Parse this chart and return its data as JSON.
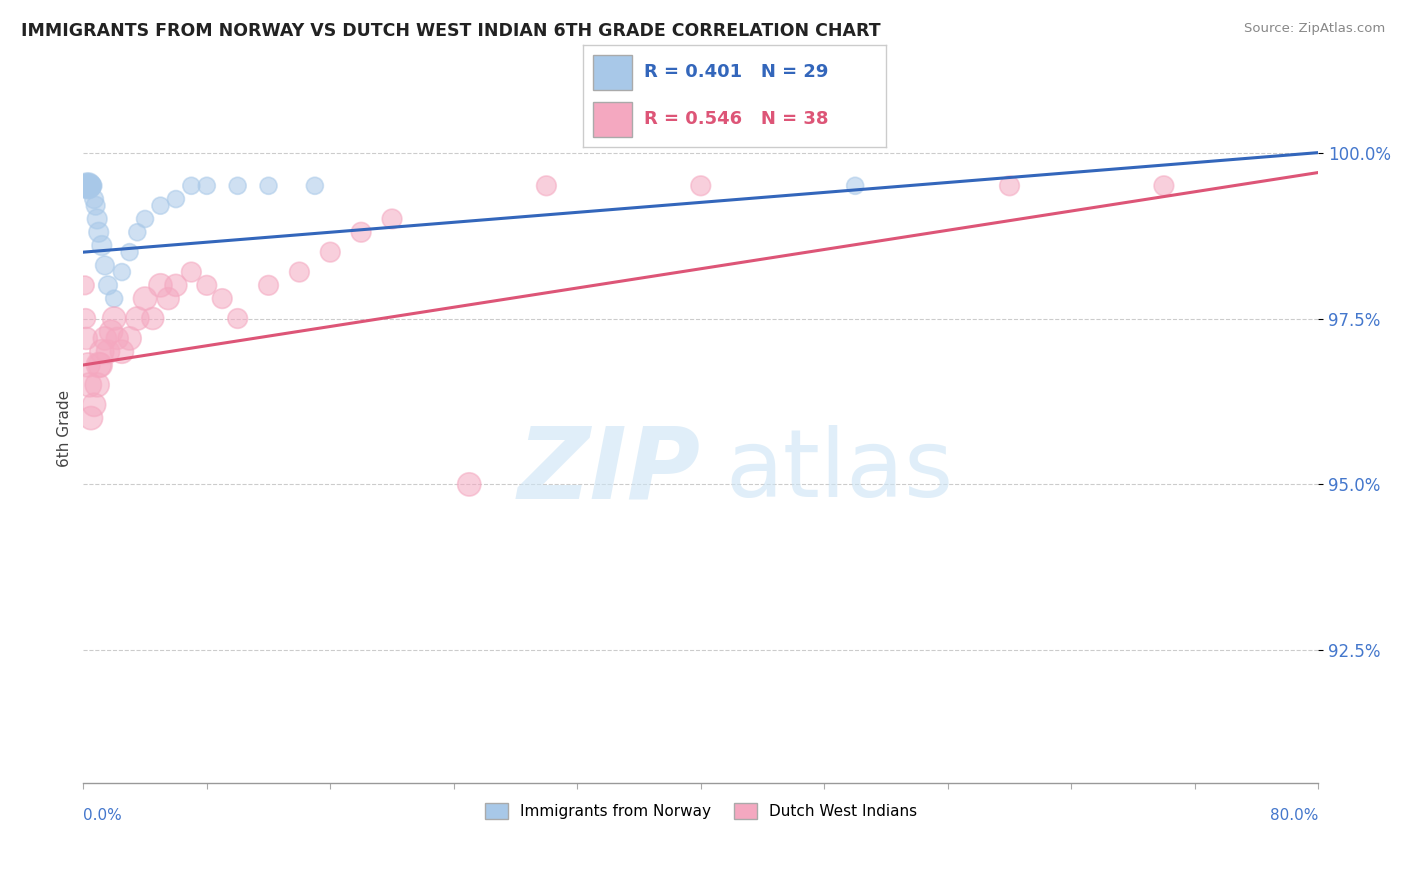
{
  "title": "IMMIGRANTS FROM NORWAY VS DUTCH WEST INDIAN 6TH GRADE CORRELATION CHART",
  "source": "Source: ZipAtlas.com",
  "ylabel": "6th Grade",
  "xlim": [
    0.0,
    80.0
  ],
  "ylim": [
    90.5,
    101.2
  ],
  "yticks": [
    92.5,
    95.0,
    97.5,
    100.0
  ],
  "ytick_labels": [
    "92.5%",
    "95.0%",
    "97.5%",
    "100.0%"
  ],
  "blue_R": 0.401,
  "blue_N": 29,
  "pink_R": 0.546,
  "pink_N": 38,
  "blue_color": "#a8c8e8",
  "pink_color": "#f4a8c0",
  "blue_line_color": "#3366bb",
  "pink_line_color": "#dd5577",
  "legend_label_blue": "Immigrants from Norway",
  "legend_label_pink": "Dutch West Indians",
  "blue_x": [
    0.15,
    0.2,
    0.25,
    0.3,
    0.35,
    0.4,
    0.45,
    0.5,
    0.6,
    0.7,
    0.8,
    0.9,
    1.0,
    1.2,
    1.4,
    1.6,
    2.0,
    2.5,
    3.0,
    3.5,
    4.0,
    5.0,
    6.0,
    7.0,
    8.0,
    10.0,
    12.0,
    15.0,
    50.0
  ],
  "blue_y": [
    99.5,
    99.5,
    99.5,
    99.5,
    99.5,
    99.5,
    99.5,
    99.5,
    99.5,
    99.3,
    99.2,
    99.0,
    98.8,
    98.6,
    98.3,
    98.0,
    97.8,
    98.2,
    98.5,
    98.8,
    99.0,
    99.2,
    99.3,
    99.5,
    99.5,
    99.5,
    99.5,
    99.5,
    99.5
  ],
  "blue_sizes": [
    200,
    250,
    300,
    350,
    300,
    250,
    200,
    200,
    180,
    180,
    180,
    200,
    200,
    200,
    180,
    180,
    150,
    150,
    150,
    150,
    150,
    150,
    150,
    150,
    150,
    150,
    150,
    150,
    150
  ],
  "pink_x": [
    0.1,
    0.15,
    0.2,
    0.3,
    0.4,
    0.5,
    0.7,
    0.9,
    1.0,
    1.1,
    1.2,
    1.4,
    1.6,
    1.8,
    2.0,
    2.2,
    2.5,
    3.0,
    3.5,
    4.0,
    4.5,
    5.0,
    5.5,
    6.0,
    7.0,
    8.0,
    9.0,
    10.0,
    12.0,
    14.0,
    16.0,
    18.0,
    20.0,
    25.0,
    30.0,
    40.0,
    60.0,
    70.0
  ],
  "pink_y": [
    98.0,
    97.5,
    97.2,
    96.8,
    96.5,
    96.0,
    96.2,
    96.5,
    96.8,
    96.8,
    97.0,
    97.2,
    97.0,
    97.3,
    97.5,
    97.2,
    97.0,
    97.2,
    97.5,
    97.8,
    97.5,
    98.0,
    97.8,
    98.0,
    98.2,
    98.0,
    97.8,
    97.5,
    98.0,
    98.2,
    98.5,
    98.8,
    99.0,
    95.0,
    99.5,
    99.5,
    99.5,
    99.5
  ],
  "pink_sizes": [
    180,
    200,
    250,
    300,
    300,
    280,
    280,
    300,
    320,
    300,
    300,
    280,
    280,
    280,
    280,
    250,
    280,
    280,
    280,
    280,
    250,
    280,
    250,
    250,
    200,
    200,
    200,
    200,
    200,
    200,
    200,
    200,
    200,
    280,
    200,
    200,
    200,
    200
  ]
}
